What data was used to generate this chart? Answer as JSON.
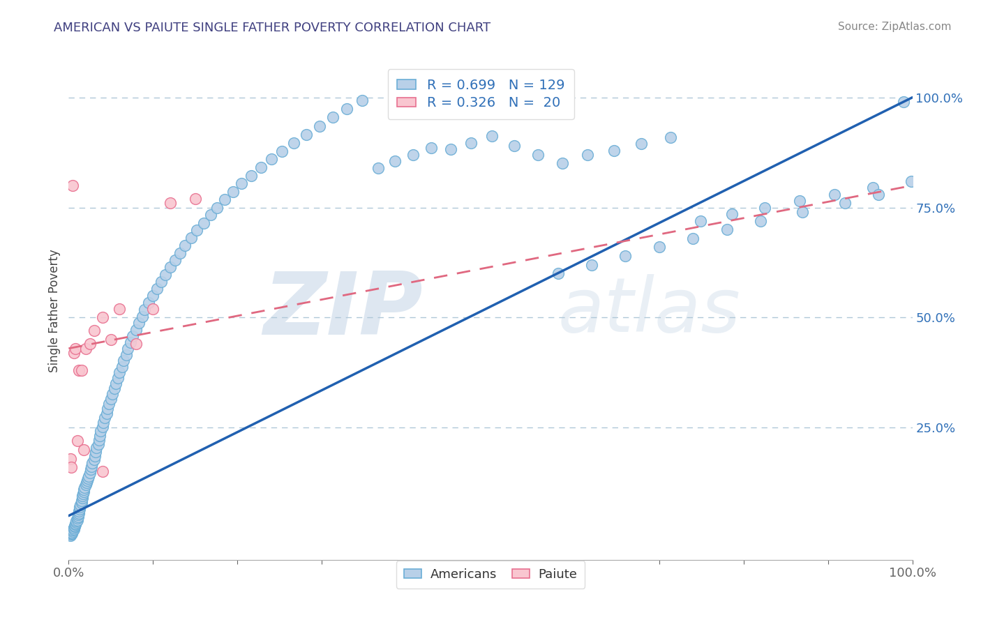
{
  "title": "AMERICAN VS PAIUTE SINGLE FATHER POVERTY CORRELATION CHART",
  "source_text": "Source: ZipAtlas.com",
  "ylabel": "Single Father Poverty",
  "xlim": [
    0.0,
    1.0
  ],
  "ylim": [
    -0.05,
    1.08
  ],
  "american_color": "#b8d0e8",
  "american_edge_color": "#6baed6",
  "paiute_color": "#f9c6d0",
  "paiute_edge_color": "#e87090",
  "american_R": 0.699,
  "american_N": 129,
  "paiute_R": 0.326,
  "paiute_N": 20,
  "blue_line_color": "#2060b0",
  "pink_line_color": "#e06880",
  "watermark": "ZIPatlas",
  "watermark_color": "#c8d8e8",
  "background_color": "#ffffff",
  "grid_color": "#b0c8d8",
  "tick_color_y": "#3070b8",
  "tick_color_x": "#666666",
  "title_color": "#404080",
  "source_color": "#888888",
  "legend_text_color": "#3070b8",
  "american_x": [
    0.002,
    0.003,
    0.004,
    0.004,
    0.005,
    0.005,
    0.006,
    0.006,
    0.007,
    0.007,
    0.008,
    0.008,
    0.009,
    0.009,
    0.01,
    0.01,
    0.011,
    0.011,
    0.012,
    0.012,
    0.013,
    0.013,
    0.014,
    0.015,
    0.015,
    0.016,
    0.016,
    0.017,
    0.018,
    0.018,
    0.019,
    0.02,
    0.021,
    0.022,
    0.023,
    0.024,
    0.025,
    0.026,
    0.027,
    0.028,
    0.03,
    0.031,
    0.032,
    0.033,
    0.035,
    0.036,
    0.037,
    0.038,
    0.04,
    0.041,
    0.043,
    0.045,
    0.046,
    0.048,
    0.05,
    0.052,
    0.054,
    0.056,
    0.058,
    0.06,
    0.063,
    0.065,
    0.068,
    0.07,
    0.073,
    0.076,
    0.08,
    0.083,
    0.087,
    0.09,
    0.095,
    0.1,
    0.105,
    0.11,
    0.115,
    0.12,
    0.126,
    0.132,
    0.138,
    0.145,
    0.152,
    0.16,
    0.168,
    0.176,
    0.185,
    0.195,
    0.205,
    0.216,
    0.228,
    0.24,
    0.253,
    0.267,
    0.282,
    0.297,
    0.313,
    0.33,
    0.348,
    0.367,
    0.387,
    0.408,
    0.43,
    0.453,
    0.477,
    0.502,
    0.528,
    0.556,
    0.585,
    0.615,
    0.646,
    0.679,
    0.713,
    0.749,
    0.786,
    0.825,
    0.866,
    0.908,
    0.953,
    0.999,
    0.58,
    0.62,
    0.66,
    0.7,
    0.74,
    0.78,
    0.82,
    0.87,
    0.92,
    0.96,
    0.99
  ],
  "american_y": [
    0.005,
    0.008,
    0.01,
    0.012,
    0.015,
    0.018,
    0.02,
    0.022,
    0.025,
    0.028,
    0.03,
    0.032,
    0.035,
    0.038,
    0.04,
    0.044,
    0.048,
    0.052,
    0.056,
    0.06,
    0.065,
    0.07,
    0.075,
    0.08,
    0.085,
    0.09,
    0.095,
    0.1,
    0.105,
    0.11,
    0.115,
    0.12,
    0.125,
    0.13,
    0.135,
    0.14,
    0.148,
    0.155,
    0.162,
    0.17,
    0.178,
    0.186,
    0.195,
    0.204,
    0.213,
    0.222,
    0.232,
    0.242,
    0.252,
    0.262,
    0.272,
    0.282,
    0.293,
    0.304,
    0.315,
    0.327,
    0.339,
    0.351,
    0.363,
    0.376,
    0.389,
    0.402,
    0.416,
    0.43,
    0.444,
    0.458,
    0.473,
    0.488,
    0.503,
    0.518,
    0.534,
    0.55,
    0.566,
    0.582,
    0.598,
    0.614,
    0.63,
    0.647,
    0.664,
    0.681,
    0.698,
    0.715,
    0.733,
    0.75,
    0.768,
    0.786,
    0.804,
    0.822,
    0.841,
    0.86,
    0.878,
    0.897,
    0.916,
    0.935,
    0.955,
    0.974,
    0.993,
    0.84,
    0.855,
    0.87,
    0.885,
    0.882,
    0.897,
    0.912,
    0.89,
    0.87,
    0.85,
    0.87,
    0.88,
    0.895,
    0.91,
    0.72,
    0.735,
    0.75,
    0.765,
    0.78,
    0.795,
    0.81,
    0.6,
    0.62,
    0.64,
    0.66,
    0.68,
    0.7,
    0.72,
    0.74,
    0.76,
    0.78,
    0.99
  ],
  "paiute_x": [
    0.002,
    0.003,
    0.005,
    0.006,
    0.008,
    0.01,
    0.012,
    0.015,
    0.018,
    0.02,
    0.025,
    0.03,
    0.04,
    0.05,
    0.06,
    0.08,
    0.1,
    0.12,
    0.15,
    0.04
  ],
  "paiute_y": [
    0.18,
    0.16,
    0.8,
    0.42,
    0.43,
    0.22,
    0.38,
    0.38,
    0.2,
    0.43,
    0.44,
    0.47,
    0.5,
    0.45,
    0.52,
    0.44,
    0.52,
    0.76,
    0.77,
    0.15
  ]
}
